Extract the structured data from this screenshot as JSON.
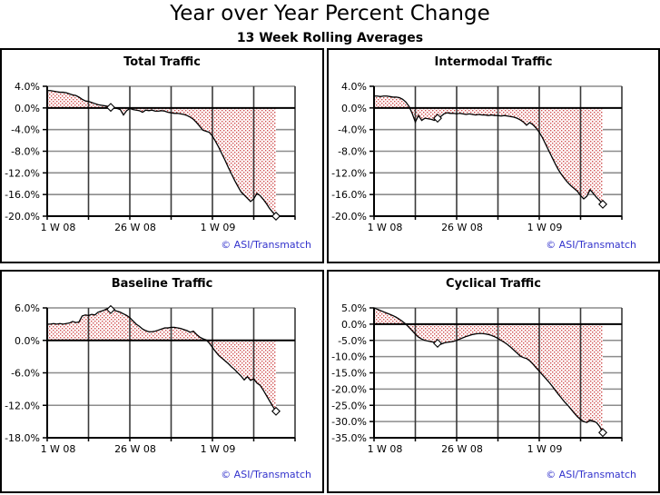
{
  "page": {
    "title": "Year over Year Percent Change",
    "subtitle": "13 Week Rolling Averages",
    "attribution": "© ASI/Transmatch"
  },
  "colors": {
    "attribution": "#3333cc",
    "fill_dot": "#d05050",
    "line": "#000000",
    "h_grid": "#8c8c8c",
    "v_grid": "#3a3a3a",
    "zero_line": "#000000",
    "axis": "#000000",
    "marker_fill": "#ffffff",
    "panel_border": "#000000"
  },
  "chart_data": [
    {
      "type": "area",
      "title": "Total Traffic",
      "x_tick_labels": [
        "1 W 08",
        "26 W 08",
        "1 W 09"
      ],
      "x_tick_weeks": [
        1,
        27,
        53
      ],
      "x_grid_weeks": [
        1,
        14,
        27,
        40,
        53,
        66,
        79
      ],
      "xlim_weeks": [
        1,
        79
      ],
      "y_ticks": [
        4,
        0,
        -4,
        -8,
        -12,
        -16,
        -20
      ],
      "y_tick_labels": [
        "4.0%",
        "0.0%",
        "-4.0%",
        "-8.0%",
        "-12.0%",
        "-16.0%",
        "-20.0%"
      ],
      "ylim": [
        -20,
        4
      ],
      "marker_indices": [
        20,
        72
      ],
      "values": [
        3.2,
        3.2,
        3.1,
        3.0,
        2.9,
        2.9,
        2.8,
        2.6,
        2.4,
        2.3,
        2.0,
        1.6,
        1.3,
        1.2,
        1.0,
        0.8,
        0.6,
        0.5,
        0.4,
        0.3,
        0.1,
        0.0,
        -0.1,
        -0.3,
        -1.3,
        -0.5,
        -0.1,
        -0.3,
        -0.4,
        -0.5,
        -0.8,
        -0.4,
        -0.5,
        -0.4,
        -0.6,
        -0.6,
        -0.5,
        -0.6,
        -0.8,
        -0.9,
        -1.0,
        -1.0,
        -1.1,
        -1.2,
        -1.4,
        -1.7,
        -2.1,
        -2.7,
        -3.4,
        -4.1,
        -4.3,
        -4.5,
        -5.2,
        -6.2,
        -7.3,
        -8.5,
        -9.7,
        -11.0,
        -12.2,
        -13.4,
        -14.5,
        -15.5,
        -16.1,
        -16.7,
        -17.3,
        -16.8,
        -15.8,
        -16.2,
        -16.9,
        -17.7,
        -18.6,
        -19.3,
        -20.0
      ]
    },
    {
      "type": "area",
      "title": "Intermodal Traffic",
      "x_tick_labels": [
        "1 W 08",
        "26 W 08",
        "1 W 09"
      ],
      "x_tick_weeks": [
        1,
        27,
        53
      ],
      "x_grid_weeks": [
        1,
        14,
        27,
        40,
        53,
        66,
        79
      ],
      "xlim_weeks": [
        1,
        79
      ],
      "y_ticks": [
        4,
        0,
        -4,
        -8,
        -12,
        -16,
        -20
      ],
      "y_tick_labels": [
        "4.0%",
        "0.0%",
        "-4.0%",
        "-8.0%",
        "-12.0%",
        "-16.0%",
        "-20.0%"
      ],
      "ylim": [
        -20,
        4
      ],
      "marker_indices": [
        20,
        72
      ],
      "values": [
        2.2,
        2.2,
        2.1,
        2.2,
        2.2,
        2.1,
        2.0,
        2.0,
        1.9,
        1.6,
        1.1,
        0.3,
        -1.0,
        -2.6,
        -1.4,
        -2.3,
        -1.9,
        -2.0,
        -2.1,
        -2.3,
        -1.9,
        -1.6,
        -1.1,
        -0.9,
        -1.0,
        -1.0,
        -1.1,
        -1.0,
        -1.1,
        -1.2,
        -1.1,
        -1.2,
        -1.3,
        -1.2,
        -1.3,
        -1.3,
        -1.4,
        -1.3,
        -1.4,
        -1.4,
        -1.5,
        -1.4,
        -1.5,
        -1.6,
        -1.7,
        -1.9,
        -2.2,
        -2.6,
        -3.2,
        -2.7,
        -3.1,
        -3.7,
        -4.5,
        -5.5,
        -6.7,
        -7.9,
        -9.1,
        -10.3,
        -11.4,
        -12.3,
        -13.1,
        -13.8,
        -14.4,
        -14.9,
        -15.4,
        -16.2,
        -16.8,
        -16.3,
        -15.1,
        -15.8,
        -16.5,
        -17.1,
        -17.8
      ]
    },
    {
      "type": "area",
      "title": "Baseline Traffic",
      "x_tick_labels": [
        "1 W 08",
        "26 W 08",
        "1 W 09"
      ],
      "x_tick_weeks": [
        1,
        27,
        53
      ],
      "x_grid_weeks": [
        1,
        14,
        27,
        40,
        53,
        66,
        79
      ],
      "xlim_weeks": [
        1,
        79
      ],
      "y_ticks": [
        6,
        0,
        -6,
        -12,
        -18
      ],
      "y_tick_labels": [
        "6.0%",
        "0.0%",
        "-6.0%",
        "-12.0%",
        "-18.0%"
      ],
      "ylim": [
        -18,
        6
      ],
      "marker_indices": [
        20,
        72
      ],
      "values": [
        3.0,
        3.0,
        3.1,
        3.0,
        3.1,
        3.0,
        3.1,
        3.2,
        3.5,
        3.3,
        3.4,
        4.5,
        4.7,
        4.6,
        4.8,
        4.7,
        5.2,
        5.4,
        5.6,
        5.9,
        5.7,
        5.6,
        5.4,
        5.2,
        4.9,
        4.6,
        4.2,
        3.6,
        3.0,
        2.6,
        2.1,
        1.8,
        1.6,
        1.6,
        1.7,
        1.9,
        2.1,
        2.3,
        2.3,
        2.4,
        2.4,
        2.3,
        2.2,
        2.0,
        1.8,
        1.5,
        1.7,
        1.1,
        0.6,
        0.3,
        0.1,
        -0.5,
        -1.3,
        -2.1,
        -2.8,
        -3.3,
        -3.8,
        -4.3,
        -4.9,
        -5.4,
        -6.0,
        -6.6,
        -7.3,
        -6.7,
        -7.4,
        -7.1,
        -7.9,
        -8.3,
        -9.2,
        -10.2,
        -11.2,
        -12.2,
        -13.1
      ]
    },
    {
      "type": "area",
      "title": "Cyclical Traffic",
      "x_tick_labels": [
        "1 W 08",
        "26 W 08",
        "1 W 09"
      ],
      "x_tick_weeks": [
        1,
        27,
        53
      ],
      "x_grid_weeks": [
        1,
        14,
        27,
        40,
        53,
        66,
        79
      ],
      "xlim_weeks": [
        1,
        79
      ],
      "y_ticks": [
        5,
        0,
        -5,
        -10,
        -15,
        -20,
        -25,
        -30,
        -35
      ],
      "y_tick_labels": [
        "5.0%",
        "0.0%",
        "-5.0%",
        "-10.0%",
        "-15.0%",
        "-20.0%",
        "-25.0%",
        "-30.0%",
        "-35.0%"
      ],
      "ylim": [
        -35,
        5
      ],
      "marker_indices": [
        20,
        72
      ],
      "values": [
        5.0,
        4.6,
        4.2,
        3.8,
        3.4,
        3.0,
        2.6,
        2.1,
        1.5,
        0.8,
        0.0,
        -1.0,
        -2.0,
        -3.1,
        -4.0,
        -4.6,
        -5.0,
        -5.2,
        -5.4,
        -5.6,
        -5.9,
        -6.2,
        -5.8,
        -5.6,
        -5.5,
        -5.3,
        -5.0,
        -4.6,
        -4.2,
        -3.8,
        -3.5,
        -3.2,
        -3.0,
        -2.9,
        -2.9,
        -3.0,
        -3.2,
        -3.5,
        -3.9,
        -4.4,
        -5.0,
        -5.6,
        -6.3,
        -7.1,
        -8.0,
        -8.9,
        -9.8,
        -10.3,
        -10.6,
        -11.3,
        -12.3,
        -13.4,
        -14.5,
        -15.6,
        -16.7,
        -17.8,
        -19.0,
        -20.3,
        -21.6,
        -22.8,
        -24.0,
        -25.0,
        -26.2,
        -27.4,
        -28.5,
        -29.4,
        -30.0,
        -30.3,
        -29.5,
        -29.9,
        -30.3,
        -31.5,
        -33.4
      ]
    }
  ]
}
